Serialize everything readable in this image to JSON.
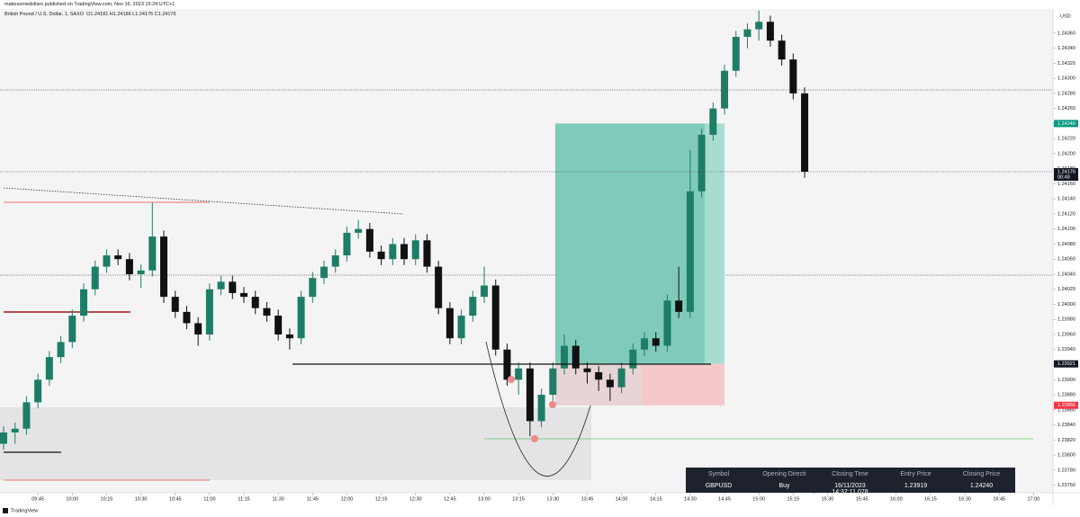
{
  "header": {
    "publisher": "makesomedollars published on TradingView.com, Nov 16, 2023 15:24 UTC+1",
    "symbol": "British Pound / U.S. Dollar, 1, SAXO",
    "ohlc": "O1.24181 H1.24186 L1.24176 C1.24176"
  },
  "chart_data": {
    "type": "candlestick",
    "currency": "USD",
    "up_color": "#1e7d66",
    "down_color": "#111111",
    "x": [
      "09:30",
      "09:35",
      "09:40",
      "09:45",
      "09:50",
      "09:55",
      "10:00",
      "10:05",
      "10:10",
      "10:15",
      "10:20",
      "10:25",
      "10:30",
      "10:35",
      "10:40",
      "10:45",
      "10:50",
      "10:55",
      "11:00",
      "11:05",
      "11:10",
      "11:15",
      "11:20",
      "11:25",
      "11:30",
      "11:35",
      "11:40",
      "11:45",
      "11:50",
      "11:55",
      "12:00",
      "12:05",
      "12:10",
      "12:15",
      "12:20",
      "12:25",
      "12:30",
      "12:35",
      "12:40",
      "12:45",
      "12:50",
      "12:55",
      "13:00",
      "13:05",
      "13:10",
      "13:15",
      "13:20",
      "13:25",
      "13:30",
      "13:35",
      "13:40",
      "13:45",
      "13:50",
      "13:55",
      "14:00",
      "14:05",
      "14:10",
      "14:15",
      "14:20",
      "14:25",
      "14:30",
      "14:35",
      "14:40",
      "14:45",
      "14:50",
      "14:55",
      "15:00",
      "15:05",
      "15:10",
      "15:15",
      "15:20"
    ],
    "open": [
      1.23815,
      1.2383,
      1.23835,
      1.2387,
      1.239,
      1.2393,
      1.2395,
      1.23985,
      1.2402,
      1.2405,
      1.24065,
      1.2406,
      1.2404,
      1.24045,
      1.2409,
      1.2401,
      1.2399,
      1.23975,
      1.2396,
      1.2402,
      1.2403,
      1.24015,
      1.2401,
      1.23995,
      1.23985,
      1.2396,
      1.23955,
      1.2401,
      1.24035,
      1.2405,
      1.24065,
      1.24095,
      1.241,
      1.2407,
      1.2406,
      1.2408,
      1.2406,
      1.24085,
      1.2405,
      1.23995,
      1.23955,
      1.23985,
      1.2401,
      1.24025,
      1.2394,
      1.239,
      1.23915,
      1.23845,
      1.2388,
      1.23915,
      1.23945,
      1.23915,
      1.2391,
      1.239,
      1.2389,
      1.23915,
      1.2394,
      1.23955,
      1.23945,
      1.24005,
      1.2399,
      1.2415,
      1.24225,
      1.2426,
      1.2431,
      1.24355,
      1.24365,
      1.24375,
      1.2435,
      1.24325,
      1.2428
    ],
    "high": [
      1.23838,
      1.23843,
      1.23878,
      1.23908,
      1.23938,
      1.23958,
      1.23993,
      1.24028,
      1.24058,
      1.24073,
      1.24073,
      1.24068,
      1.24053,
      1.24135,
      1.24098,
      1.24018,
      1.23998,
      1.23983,
      1.24028,
      1.24038,
      1.24038,
      1.24023,
      1.24018,
      1.24003,
      1.23993,
      1.23968,
      1.24018,
      1.24043,
      1.24058,
      1.24073,
      1.24103,
      1.24112,
      1.24108,
      1.24078,
      1.24088,
      1.24088,
      1.24093,
      1.24093,
      1.24058,
      1.24003,
      1.23993,
      1.24018,
      1.2405,
      1.24033,
      1.23948,
      1.23923,
      1.23923,
      1.23888,
      1.23923,
      1.2396,
      1.23953,
      1.23923,
      1.23918,
      1.23908,
      1.23923,
      1.23948,
      1.23963,
      1.23963,
      1.24013,
      1.2405,
      1.24205,
      1.24233,
      1.24268,
      1.24318,
      1.24363,
      1.24373,
      1.2439,
      1.24383,
      1.24358,
      1.24333,
      1.24288
    ],
    "low": [
      1.23807,
      1.23815,
      1.23827,
      1.23862,
      1.23892,
      1.23922,
      1.23942,
      1.23977,
      1.24012,
      1.24042,
      1.24052,
      1.24032,
      1.24022,
      1.24037,
      1.24002,
      1.23982,
      1.23967,
      1.23945,
      1.23952,
      1.24012,
      1.24007,
      1.24002,
      1.23987,
      1.23977,
      1.23952,
      1.2394,
      1.23947,
      1.24002,
      1.24027,
      1.24042,
      1.24057,
      1.24087,
      1.24062,
      1.24052,
      1.24052,
      1.24052,
      1.24052,
      1.24042,
      1.23987,
      1.23947,
      1.23947,
      1.23977,
      1.24002,
      1.23932,
      1.23892,
      1.2388,
      1.23825,
      1.23837,
      1.23872,
      1.23907,
      1.23907,
      1.23895,
      1.23885,
      1.23872,
      1.23882,
      1.23907,
      1.23932,
      1.23937,
      1.23937,
      1.23982,
      1.23982,
      1.24142,
      1.24217,
      1.24252,
      1.24302,
      1.2434,
      1.2435,
      1.24342,
      1.24317,
      1.24272,
      1.24168
    ],
    "close": [
      1.2383,
      1.23835,
      1.2387,
      1.239,
      1.2393,
      1.2395,
      1.23985,
      1.2402,
      1.2405,
      1.24065,
      1.2406,
      1.2404,
      1.24045,
      1.2409,
      1.2401,
      1.2399,
      1.23975,
      1.2396,
      1.2402,
      1.2403,
      1.24015,
      1.2401,
      1.23995,
      1.23985,
      1.2396,
      1.23955,
      1.2401,
      1.24035,
      1.2405,
      1.24065,
      1.24095,
      1.241,
      1.2407,
      1.2406,
      1.2408,
      1.2406,
      1.24085,
      1.2405,
      1.23995,
      1.23955,
      1.23985,
      1.2401,
      1.24025,
      1.2394,
      1.239,
      1.23915,
      1.23845,
      1.2388,
      1.23915,
      1.23945,
      1.23915,
      1.2391,
      1.239,
      1.2389,
      1.23915,
      1.2394,
      1.23955,
      1.23945,
      1.24005,
      1.2399,
      1.2415,
      1.24225,
      1.2426,
      1.2431,
      1.24355,
      1.24365,
      1.24375,
      1.2435,
      1.24325,
      1.2428,
      1.24176
    ],
    "ylim": [
      1.2375,
      1.24392
    ],
    "yticks": [
      {
        "value": 1.2376,
        "label": "1.23760"
      },
      {
        "value": 1.2378,
        "label": "1.23780"
      },
      {
        "value": 1.238,
        "label": "1.23800"
      },
      {
        "value": 1.2382,
        "label": "1.23820"
      },
      {
        "value": 1.2384,
        "label": "1.23840"
      },
      {
        "value": 1.2386,
        "label": "1.23860"
      },
      {
        "value": 1.2388,
        "label": "1.23880"
      },
      {
        "value": 1.239,
        "label": "1.23900"
      },
      {
        "value": 1.2392,
        "label": "1.23920"
      },
      {
        "value": 1.2394,
        "label": "1.23940"
      },
      {
        "value": 1.2396,
        "label": "1.23960"
      },
      {
        "value": 1.2398,
        "label": "1.23980"
      },
      {
        "value": 1.24,
        "label": "1.24000"
      },
      {
        "value": 1.2402,
        "label": "1.24020"
      },
      {
        "value": 1.2404,
        "label": "1.24040"
      },
      {
        "value": 1.2406,
        "label": "1.24060"
      },
      {
        "value": 1.2408,
        "label": "1.24080"
      },
      {
        "value": 1.241,
        "label": "1.24100"
      },
      {
        "value": 1.2412,
        "label": "1.24120"
      },
      {
        "value": 1.2414,
        "label": "1.24140"
      },
      {
        "value": 1.2416,
        "label": "1.24160"
      },
      {
        "value": 1.2418,
        "label": "1.24180"
      },
      {
        "value": 1.242,
        "label": "1.24200"
      },
      {
        "value": 1.2422,
        "label": "1.24220"
      },
      {
        "value": 1.2424,
        "label": "1.24240"
      },
      {
        "value": 1.2426,
        "label": "1.24260"
      },
      {
        "value": 1.2428,
        "label": "1.24280"
      },
      {
        "value": 1.243,
        "label": "1.24300"
      },
      {
        "value": 1.2432,
        "label": "1.24320"
      },
      {
        "value": 1.2434,
        "label": "1.24340"
      },
      {
        "value": 1.2436,
        "label": "1.24360"
      }
    ],
    "xticks": [
      "09:45",
      "10:00",
      "10:15",
      "10:30",
      "10:45",
      "11:00",
      "11:15",
      "11:30",
      "11:45",
      "12:00",
      "12:15",
      "12:30",
      "12:45",
      "13:00",
      "13:15",
      "13:30",
      "13:45",
      "14:00",
      "14:15",
      "14:30",
      "14:45",
      "15:00",
      "15:15",
      "15:30",
      "15:45",
      "16:00",
      "16:15",
      "16:30",
      "16:45",
      "17:00"
    ],
    "price_markers": [
      {
        "value": 1.2424,
        "label": "1.24240",
        "color": "#089981"
      },
      {
        "value": 1.24176,
        "label": "1.24176",
        "color": "#131722",
        "countdown": "00:48"
      },
      {
        "value": 1.23921,
        "label": "1.23921",
        "color": "#131722"
      },
      {
        "value": 1.23866,
        "label": "1.23866",
        "color": "#f23645"
      }
    ]
  },
  "trade_table": {
    "headers": [
      "Symbol",
      "Opening Directi",
      "Closing Time",
      "Entry Price",
      "Closing Price"
    ],
    "row": [
      "GBPUSD",
      "Buy",
      "16/11/2023 14:37:11.078",
      "1.23919",
      "1.24240"
    ]
  },
  "footer": "TradingView"
}
